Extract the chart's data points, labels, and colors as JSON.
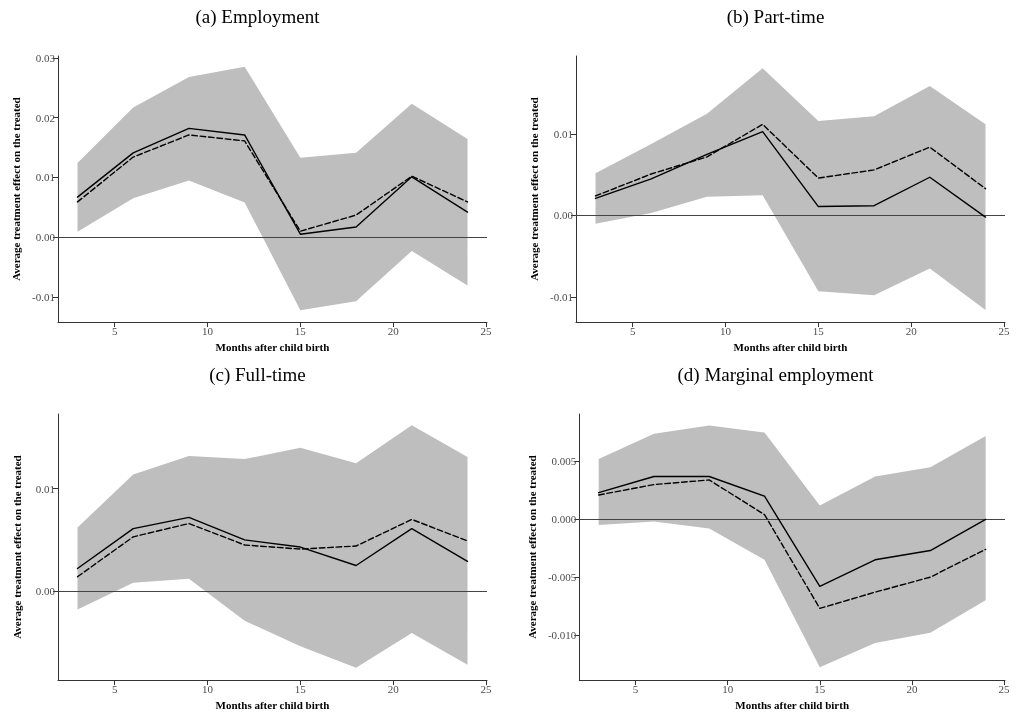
{
  "chart_data": [
    {
      "type": "line",
      "title": "(a) Employment",
      "xlabel": "Months after child birth",
      "ylabel": "Average treatment effect on the treated",
      "x": [
        3,
        6,
        9,
        12,
        15,
        18,
        21,
        24
      ],
      "marker": "none",
      "xlim": [
        1.95,
        25.05
      ],
      "ylim": [
        -0.0142,
        0.0303
      ],
      "xticks": [
        5,
        10,
        15,
        20,
        25
      ],
      "yticks": [
        {
          "value": -0.01,
          "label": "-0.01"
        },
        {
          "value": 0,
          "label": "0.00"
        },
        {
          "value": 0.01,
          "label": "0.01"
        },
        {
          "value": 0.02,
          "label": "0.02"
        },
        {
          "value": 0.03,
          "label": "0.03"
        }
      ],
      "ref_lines": [
        {
          "axis": "y",
          "value": 0
        }
      ],
      "series": [
        {
          "color": "#000000",
          "line_style": "solid",
          "values": [
            0.0067,
            0.0141,
            0.0182,
            0.0171,
            0.0005,
            0.0017,
            0.0101,
            0.0042
          ],
          "lower": [
            0.0009,
            0.0065,
            0.0095,
            0.0058,
            -0.0122,
            -0.0107,
            -0.0023,
            -0.0081
          ],
          "upper": [
            0.0124,
            0.0217,
            0.0268,
            0.0285,
            0.0133,
            0.0141,
            0.0223,
            0.0164
          ]
        },
        {
          "color": "#000000",
          "line_style": "dashed",
          "values": [
            0.0059,
            0.0134,
            0.0171,
            0.0161,
            0.001,
            0.0037,
            0.0102,
            0.0059
          ]
        }
      ]
    },
    {
      "type": "line",
      "title": "(b) Part-time",
      "xlabel": "Months after child birth",
      "ylabel": "Average treatment effect on the treated",
      "x": [
        3,
        6,
        9,
        12,
        15,
        18,
        21,
        24
      ],
      "marker": "none",
      "xlim": [
        1.95,
        25.05
      ],
      "ylim": [
        -0.0131,
        0.0196
      ],
      "xticks": [
        5,
        10,
        15,
        20,
        25
      ],
      "yticks": [
        {
          "value": -0.01,
          "label": "-0.01"
        },
        {
          "value": 0,
          "label": "0.00"
        },
        {
          "value": 0.01,
          "label": "0.01"
        }
      ],
      "ref_lines": [
        {
          "axis": "y",
          "value": 0
        }
      ],
      "series": [
        {
          "color": "#000000",
          "line_style": "solid",
          "values": [
            0.0021,
            0.0045,
            0.0075,
            0.0103,
            0.0011,
            0.0012,
            0.0047,
            -0.0002
          ],
          "lower": [
            -0.001,
            0.0003,
            0.0023,
            0.0025,
            -0.0093,
            -0.0098,
            -0.0065,
            -0.0116
          ],
          "upper": [
            0.0052,
            0.0088,
            0.0125,
            0.0181,
            0.0116,
            0.0122,
            0.0159,
            0.0112
          ]
        },
        {
          "color": "#000000",
          "line_style": "dashed",
          "values": [
            0.0024,
            0.0051,
            0.0072,
            0.0112,
            0.0046,
            0.0056,
            0.0084,
            0.0033
          ]
        }
      ]
    },
    {
      "type": "line",
      "title": "(c) Full-time",
      "xlabel": "Months after child birth",
      "ylabel": "Average treatment effect on the treated",
      "x": [
        3,
        6,
        9,
        12,
        15,
        18,
        21,
        24
      ],
      "marker": "none",
      "xlim": [
        1.95,
        25.05
      ],
      "ylim": [
        -0.0087,
        0.0173
      ],
      "xticks": [
        5,
        10,
        15,
        20,
        25
      ],
      "yticks": [
        {
          "value": 0,
          "label": "0.00"
        },
        {
          "value": 0.01,
          "label": "0.01"
        }
      ],
      "ref_lines": [
        {
          "axis": "y",
          "value": 0
        }
      ],
      "series": [
        {
          "color": "#000000",
          "line_style": "solid",
          "values": [
            0.0022,
            0.0061,
            0.0072,
            0.005,
            0.0043,
            0.0025,
            0.0061,
            0.0029
          ],
          "lower": [
            -0.0018,
            0.0008,
            0.0012,
            -0.0029,
            -0.0054,
            -0.0075,
            -0.0041,
            -0.0072
          ],
          "upper": [
            0.0062,
            0.0114,
            0.0132,
            0.0129,
            0.014,
            0.0125,
            0.0162,
            0.0131
          ]
        },
        {
          "color": "#000000",
          "line_style": "dashed",
          "values": [
            0.0014,
            0.0053,
            0.0066,
            0.0045,
            0.0041,
            0.0044,
            0.007,
            0.0049
          ]
        }
      ]
    },
    {
      "type": "line",
      "title": "(d) Marginal employment",
      "xlabel": "Months after child birth",
      "ylabel": "Average treatment effect on the treated",
      "x": [
        3,
        6,
        9,
        12,
        15,
        18,
        21,
        24
      ],
      "marker": "none",
      "xlim": [
        1.95,
        25.05
      ],
      "ylim": [
        -0.0139,
        0.0091
      ],
      "xticks": [
        5,
        10,
        15,
        20,
        25
      ],
      "yticks": [
        {
          "value": -0.01,
          "label": "-0.010"
        },
        {
          "value": -0.005,
          "label": "-0.005"
        },
        {
          "value": 0,
          "label": "0.000"
        },
        {
          "value": 0.005,
          "label": "0.005"
        }
      ],
      "ref_lines": [
        {
          "axis": "y",
          "value": 0
        }
      ],
      "series": [
        {
          "color": "#000000",
          "line_style": "solid",
          "values": [
            0.0023,
            0.0037,
            0.0037,
            0.002,
            -0.0058,
            -0.0035,
            -0.0027,
            0.0
          ],
          "lower": [
            -0.0005,
            -0.0002,
            -0.0008,
            -0.0035,
            -0.0128,
            -0.0107,
            -0.0098,
            -0.007
          ],
          "upper": [
            0.0052,
            0.0074,
            0.0081,
            0.0075,
            0.0012,
            0.0037,
            0.0045,
            0.0072
          ]
        },
        {
          "color": "#000000",
          "line_style": "dashed",
          "values": [
            0.0021,
            0.003,
            0.0034,
            0.0004,
            -0.0077,
            -0.0063,
            -0.005,
            -0.0026
          ]
        }
      ]
    }
  ]
}
